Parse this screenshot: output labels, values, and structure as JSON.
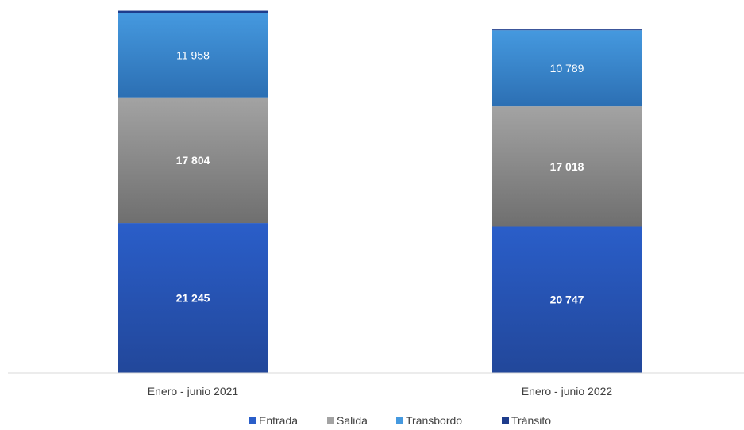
{
  "chart_data": {
    "type": "bar",
    "stacked": true,
    "categories": [
      "Enero - junio 2021",
      "Enero - junio 2022"
    ],
    "series": [
      {
        "name": "Entrada",
        "values": [
          21245,
          20747
        ],
        "labels": [
          "21 245",
          "20 747"
        ],
        "color": "#2a5ec9",
        "color_dark": "#22479a",
        "label_bold": true
      },
      {
        "name": "Salida",
        "values": [
          17804,
          17018
        ],
        "labels": [
          "17 804",
          "17 018"
        ],
        "color": "#a3a3a3",
        "color_dark": "#6f6f6f",
        "label_bold": true
      },
      {
        "name": "Transbordo",
        "values": [
          11958,
          10789
        ],
        "labels": [
          "11 958",
          "10 789"
        ],
        "color": "#4599df",
        "color_dark": "#2c6fb3",
        "label_bold": false
      },
      {
        "name": "Tránsito",
        "values": [
          320,
          120
        ],
        "labels": [
          "",
          ""
        ],
        "color": "#1e3c8c",
        "color_dark": "#1e3c8c",
        "label_bold": false
      }
    ],
    "ylim": [
      0,
      51500
    ],
    "title": "",
    "xlabel": "",
    "ylabel": "",
    "grid": false,
    "legend": "bottom"
  }
}
